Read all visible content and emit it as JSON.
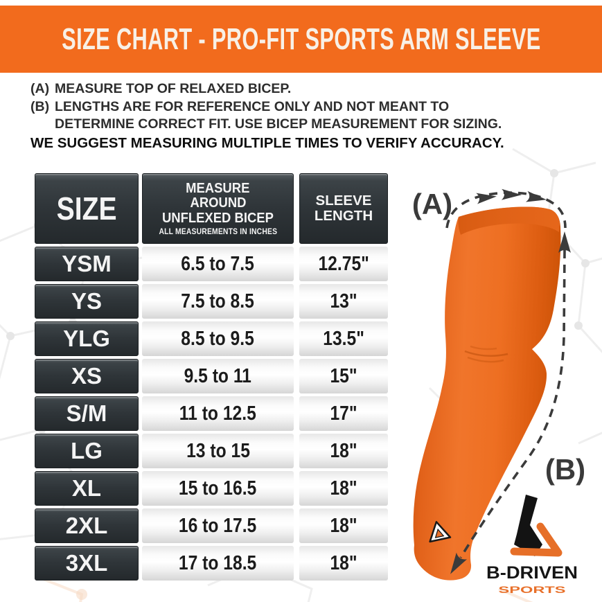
{
  "banner": {
    "title": "SIZE CHART - PRO-FIT SPORTS ARM SLEEVE",
    "bg_color": "#F26B1D",
    "text_color": "#F8F0E6"
  },
  "notes": {
    "a_prefix": "(A)",
    "a_text": "MEASURE TOP OF RELAXED BICEP.",
    "b_prefix": "(B)",
    "b_line1": "LENGTHS ARE FOR REFERENCE ONLY AND NOT MEANT TO",
    "b_line2": "DETERMINE CORRECT FIT. USE BICEP MEASUREMENT FOR SIZING.",
    "footer": "WE SUGGEST MEASURING MULTIPLE TIMES TO VERIFY ACCURACY."
  },
  "table": {
    "header": {
      "size": "SIZE",
      "measure_line1": "MEASURE",
      "measure_line2": "AROUND",
      "measure_line3": "UNFLEXED BICEP",
      "measure_sub": "ALL MEASUREMENTS IN INCHES",
      "sleeve_line1": "SLEEVE",
      "sleeve_line2": "LENGTH"
    }
  },
  "chart_data": {
    "type": "table",
    "title": "SIZE CHART - PRO-FIT SPORTS ARM SLEEVE",
    "columns": [
      "SIZE",
      "MEASURE AROUND UNFLEXED BICEP (ALL MEASUREMENTS IN INCHES)",
      "SLEEVE LENGTH"
    ],
    "rows": [
      [
        "YSM",
        "6.5 to 7.5",
        "12.75\""
      ],
      [
        "YS",
        "7.5 to 8.5",
        "13\""
      ],
      [
        "YLG",
        "8.5 to 9.5",
        "13.5\""
      ],
      [
        "XS",
        "9.5 to 11",
        "15\""
      ],
      [
        "S/M",
        "11 to 12.5",
        "17\""
      ],
      [
        "LG",
        "13 to 15",
        "18\""
      ],
      [
        "XL",
        "15 to 16.5",
        "18\""
      ],
      [
        "2XL",
        "16 to 17.5",
        "18\""
      ],
      [
        "3XL",
        "17 to 18.5",
        "18\""
      ]
    ]
  },
  "illustration": {
    "label_a": "(A)",
    "label_b": "(B)",
    "sleeve_color": "#EC6C1E"
  },
  "logo": {
    "name": "B-DRIVEN",
    "sub": "SPORTS"
  },
  "colors": {
    "accent_orange": "#F26B1D",
    "dark_cell": "#2F3539",
    "light_cell": "#EFEFEF",
    "annotation": "#3A3A3A"
  }
}
